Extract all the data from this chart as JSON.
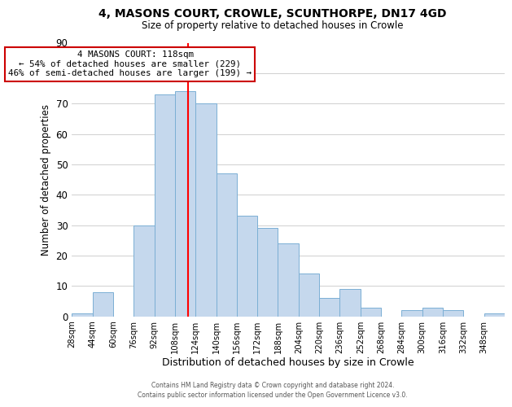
{
  "title1": "4, MASONS COURT, CROWLE, SCUNTHORPE, DN17 4GD",
  "title2": "Size of property relative to detached houses in Crowle",
  "xlabel": "Distribution of detached houses by size in Crowle",
  "ylabel": "Number of detached properties",
  "footer1": "Contains HM Land Registry data © Crown copyright and database right 2024.",
  "footer2": "Contains public sector information licensed under the Open Government Licence v3.0.",
  "bin_labels": [
    "28sqm",
    "44sqm",
    "60sqm",
    "76sqm",
    "92sqm",
    "108sqm",
    "124sqm",
    "140sqm",
    "156sqm",
    "172sqm",
    "188sqm",
    "204sqm",
    "220sqm",
    "236sqm",
    "252sqm",
    "268sqm",
    "284sqm",
    "300sqm",
    "316sqm",
    "332sqm",
    "348sqm"
  ],
  "bin_edges": [
    28,
    44,
    60,
    76,
    92,
    108,
    124,
    140,
    156,
    172,
    188,
    204,
    220,
    236,
    252,
    268,
    284,
    300,
    316,
    332,
    348
  ],
  "bar_heights": [
    1,
    8,
    0,
    30,
    73,
    74,
    70,
    47,
    33,
    29,
    24,
    14,
    6,
    9,
    3,
    0,
    2,
    3,
    2,
    0,
    1
  ],
  "bar_color": "#c5d8ed",
  "bar_edge_color": "#7bafd4",
  "grid_color": "#c8c8c8",
  "ref_line_x": 118,
  "ref_line_color": "red",
  "annotation_title": "4 MASONS COURT: 118sqm",
  "annotation_line1": "← 54% of detached houses are smaller (229)",
  "annotation_line2": "46% of semi-detached houses are larger (199) →",
  "annotation_box_color": "white",
  "annotation_box_edge": "#cc0000",
  "ylim": [
    0,
    90
  ],
  "yticks": [
    0,
    10,
    20,
    30,
    40,
    50,
    60,
    70,
    80,
    90
  ],
  "bin_width": 16
}
